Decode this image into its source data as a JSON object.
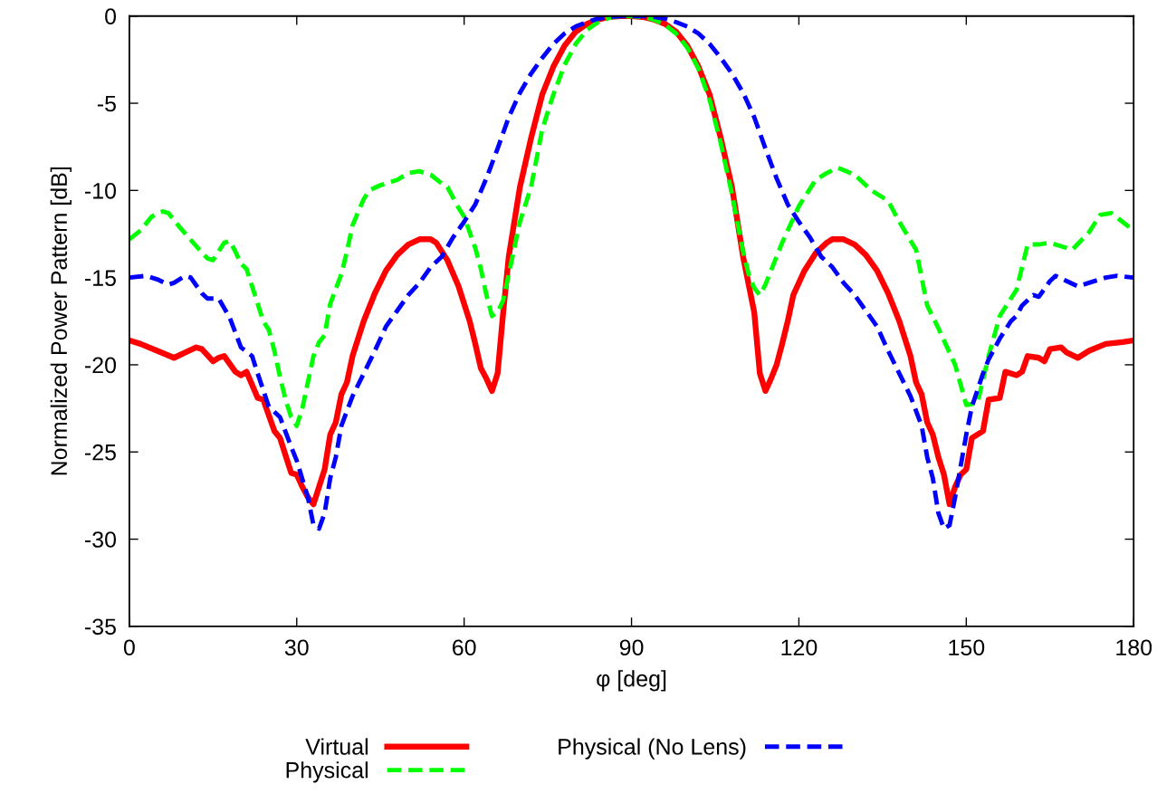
{
  "chart_data": {
    "type": "line",
    "xlabel": "φ [deg]",
    "ylabel": "Normalized Power Pattern [dB]",
    "xlim": [
      0,
      180
    ],
    "xticks": [
      0,
      30,
      60,
      90,
      120,
      150,
      180
    ],
    "ylim": [
      -35,
      0
    ],
    "yticks": [
      -35,
      -30,
      -25,
      -20,
      -15,
      -10,
      -5,
      0
    ],
    "legend": "bottom",
    "marker": "none",
    "series": [
      {
        "name": "Virtual",
        "color": "#ff0000",
        "line_style": "solid",
        "x": [
          0,
          2,
          5,
          8,
          10,
          12,
          13,
          15,
          16,
          17,
          19,
          20,
          21,
          23,
          24,
          26,
          27,
          29,
          30,
          31,
          32,
          33,
          34,
          35,
          36,
          37,
          38,
          39,
          40,
          42,
          44,
          46,
          48,
          50,
          52,
          54,
          55,
          57,
          59,
          61,
          62,
          63,
          64,
          65,
          66,
          67,
          68,
          70,
          72,
          74,
          76,
          78,
          80,
          82,
          84,
          86,
          88,
          90,
          92,
          94,
          96,
          98,
          100,
          102,
          104,
          106,
          108,
          110,
          112,
          113,
          114,
          115,
          116,
          117,
          118,
          119,
          121,
          123,
          125,
          126,
          128,
          130,
          132,
          134,
          136,
          138,
          140,
          141,
          142,
          143,
          144,
          145,
          146,
          147,
          148,
          149,
          150,
          151,
          153,
          154,
          156,
          157,
          159,
          160,
          161,
          163,
          164,
          165,
          167,
          168,
          170,
          172,
          175,
          178,
          180
        ],
        "values": [
          -18.6,
          -18.8,
          -19.2,
          -19.6,
          -19.3,
          -19.0,
          -19.1,
          -19.8,
          -19.6,
          -19.5,
          -20.4,
          -20.6,
          -20.4,
          -21.9,
          -22.0,
          -23.8,
          -24.2,
          -26.2,
          -26.3,
          -27.0,
          -27.6,
          -28.0,
          -27.0,
          -26.0,
          -24.0,
          -23.3,
          -21.7,
          -21.0,
          -19.5,
          -17.5,
          -15.9,
          -14.6,
          -13.7,
          -13.1,
          -12.8,
          -12.8,
          -13.0,
          -14.0,
          -15.5,
          -17.5,
          -18.8,
          -20.2,
          -20.8,
          -21.5,
          -20.5,
          -17.0,
          -13.8,
          -9.8,
          -7.0,
          -4.5,
          -2.9,
          -1.7,
          -0.9,
          -0.45,
          -0.2,
          -0.05,
          0,
          0,
          -0.05,
          -0.2,
          -0.45,
          -0.9,
          -1.7,
          -2.9,
          -4.5,
          -7.0,
          -9.8,
          -13.8,
          -17.0,
          -20.5,
          -21.5,
          -20.8,
          -20.0,
          -18.8,
          -17.5,
          -16.0,
          -14.6,
          -13.6,
          -13.0,
          -12.8,
          -12.8,
          -13.1,
          -13.7,
          -14.6,
          -15.9,
          -17.5,
          -19.5,
          -21.0,
          -21.7,
          -23.3,
          -24.0,
          -25.3,
          -26.3,
          -28.0,
          -27.0,
          -26.3,
          -26.0,
          -24.2,
          -23.8,
          -22.0,
          -21.9,
          -20.4,
          -20.6,
          -20.4,
          -19.5,
          -19.6,
          -19.8,
          -19.1,
          -19.0,
          -19.3,
          -19.6,
          -19.2,
          -18.8,
          -18.7,
          -18.6
        ]
      },
      {
        "name": "Physical",
        "color": "#00ff00",
        "line_style": "dashed",
        "x": [
          0,
          2,
          4,
          6,
          7,
          9,
          12,
          14,
          15,
          17,
          18,
          19,
          20,
          21,
          22,
          23,
          24,
          25,
          26,
          27,
          28,
          29,
          30,
          31,
          32,
          33,
          34,
          35,
          36,
          38,
          39,
          40,
          42,
          43,
          45,
          48,
          50,
          52,
          54,
          56,
          57,
          59,
          60,
          61,
          62,
          63,
          64,
          65,
          66,
          67,
          68,
          70,
          72,
          74,
          76,
          78,
          80,
          82,
          84,
          86,
          88,
          90,
          92,
          94,
          96,
          98,
          100,
          102,
          104,
          106,
          108,
          110,
          111,
          112,
          113,
          114,
          115,
          117,
          120,
          123,
          125,
          127,
          130,
          133,
          136,
          138,
          141,
          143,
          145,
          148,
          150,
          152,
          154,
          156,
          159,
          161,
          163,
          165,
          167,
          169,
          172,
          174,
          176,
          178,
          180
        ],
        "values": [
          -12.8,
          -12.3,
          -11.5,
          -11.2,
          -11.3,
          -12.1,
          -13.2,
          -13.9,
          -14.0,
          -13.0,
          -12.9,
          -13.5,
          -14.2,
          -14.5,
          -15.5,
          -16.5,
          -17.5,
          -18.0,
          -19.2,
          -20.7,
          -22.0,
          -23.0,
          -23.5,
          -22.5,
          -21.0,
          -19.5,
          -18.7,
          -18.3,
          -16.5,
          -14.8,
          -13.5,
          -12.0,
          -10.5,
          -10.0,
          -9.7,
          -9.4,
          -9.0,
          -8.9,
          -9.1,
          -9.6,
          -9.8,
          -11.0,
          -11.5,
          -12.4,
          -13.3,
          -14.5,
          -16.0,
          -17.2,
          -17.0,
          -16.3,
          -14.8,
          -11.8,
          -9.8,
          -6.5,
          -4.5,
          -2.8,
          -1.6,
          -0.8,
          -0.35,
          -0.1,
          0,
          0,
          -0.05,
          -0.2,
          -0.5,
          -1.0,
          -1.8,
          -3.0,
          -4.8,
          -7.3,
          -10.2,
          -13.5,
          -14.8,
          -15.6,
          -16.0,
          -15.4,
          -14.6,
          -13.0,
          -10.9,
          -9.4,
          -9.0,
          -8.7,
          -9.1,
          -10.0,
          -10.6,
          -11.8,
          -13.4,
          -16.6,
          -17.9,
          -20.0,
          -22.3,
          -22.2,
          -19.5,
          -17.2,
          -15.7,
          -13.1,
          -13.1,
          -13.0,
          -13.2,
          -13.4,
          -12.4,
          -11.4,
          -11.3,
          -11.8,
          -12.3
        ]
      },
      {
        "name": "Physical (No Lens)",
        "color": "#0000ff",
        "line_style": "dashed",
        "x": [
          0,
          3,
          5,
          7,
          8,
          10,
          11,
          13,
          14,
          16,
          18,
          20,
          22,
          23,
          25,
          27,
          29,
          30,
          32,
          33,
          34,
          35,
          36,
          37,
          38,
          40,
          42,
          44,
          46,
          48,
          50,
          52,
          54,
          56,
          58,
          60,
          62,
          64,
          66,
          68,
          70,
          72,
          74,
          76,
          78,
          80,
          82,
          84,
          86,
          88,
          90,
          92,
          94,
          96,
          98,
          100,
          102,
          104,
          106,
          108,
          110,
          112,
          114,
          116,
          118,
          120,
          122,
          124,
          126,
          128,
          130,
          132,
          134,
          136,
          138,
          140,
          142,
          143,
          144,
          145,
          146,
          147,
          148,
          150,
          151,
          153,
          154,
          156,
          158,
          159,
          160,
          162,
          163,
          165,
          166,
          168,
          170,
          172,
          175,
          177,
          180
        ],
        "values": [
          -15.0,
          -14.9,
          -15.1,
          -15.4,
          -15.3,
          -14.9,
          -15.0,
          -15.9,
          -16.2,
          -16.2,
          -17.3,
          -19.0,
          -19.5,
          -20.5,
          -22.4,
          -23.0,
          -24.7,
          -25.5,
          -27.6,
          -29.2,
          -29.4,
          -28.5,
          -26.5,
          -25.3,
          -23.5,
          -21.8,
          -20.5,
          -19.2,
          -17.8,
          -16.9,
          -16.0,
          -15.3,
          -14.4,
          -13.8,
          -12.7,
          -11.8,
          -10.8,
          -9.3,
          -7.6,
          -5.8,
          -4.4,
          -3.3,
          -2.4,
          -1.6,
          -1.0,
          -0.6,
          -0.35,
          -0.15,
          -0.05,
          0,
          0,
          0,
          -0.05,
          -0.15,
          -0.35,
          -0.6,
          -1.0,
          -1.6,
          -2.4,
          -3.3,
          -4.4,
          -5.8,
          -7.6,
          -9.3,
          -10.8,
          -11.8,
          -12.7,
          -13.8,
          -14.4,
          -15.3,
          -16.0,
          -16.9,
          -17.8,
          -19.2,
          -20.5,
          -21.8,
          -23.5,
          -25.3,
          -26.5,
          -28.5,
          -29.4,
          -29.2,
          -27.6,
          -24.0,
          -22.4,
          -20.5,
          -19.7,
          -18.5,
          -17.5,
          -17.2,
          -16.6,
          -16.0,
          -16.1,
          -15.2,
          -14.9,
          -15.2,
          -15.5,
          -15.3,
          -15.0,
          -14.9,
          -15.0
        ]
      }
    ]
  }
}
